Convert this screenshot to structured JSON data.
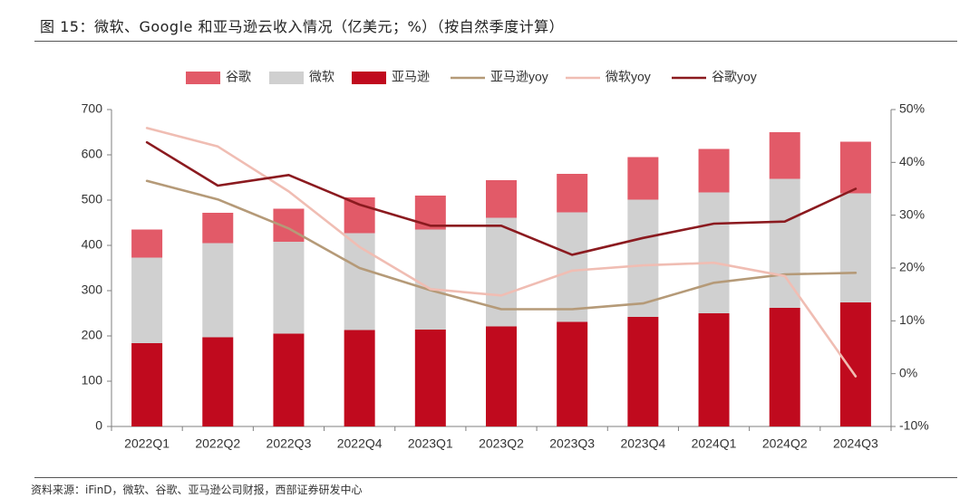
{
  "figure": {
    "title": "图 15：微软、Google 和亚马逊云收入情况（亿美元；%）（按自然季度计算）",
    "source": "资料来源：iFinD，微软、谷歌、亚马逊公司财报，西部证券研发中心"
  },
  "chart_data": {
    "type": "bar",
    "stacked": true,
    "categories": [
      "2022Q1",
      "2022Q2",
      "2022Q3",
      "2022Q4",
      "2023Q1",
      "2023Q2",
      "2023Q3",
      "2023Q4",
      "2024Q1",
      "2024Q2",
      "2024Q3"
    ],
    "series": [
      {
        "name": "亚马逊",
        "kind": "bar",
        "color": "#C00A1E",
        "values": [
          184,
          197,
          205,
          213,
          214,
          221,
          231,
          242,
          250,
          262,
          274
        ]
      },
      {
        "name": "微软",
        "kind": "bar",
        "color": "#D0D0D0",
        "values": [
          189,
          208,
          203,
          214,
          221,
          240,
          242,
          259,
          267,
          285,
          241
        ]
      },
      {
        "name": "谷歌",
        "kind": "bar",
        "color": "#E25A68",
        "values": [
          62,
          67,
          73,
          79,
          75,
          83,
          85,
          94,
          96,
          103,
          114
        ]
      },
      {
        "name": "亚马逊yoy",
        "kind": "line",
        "axis": "right",
        "color": "#B59A78",
        "values": [
          36.5,
          33.0,
          27.5,
          20.0,
          15.8,
          12.2,
          12.2,
          13.3,
          17.2,
          18.8,
          19.1
        ]
      },
      {
        "name": "微软yoy",
        "kind": "line",
        "axis": "right",
        "color": "#F0BDB3",
        "values": [
          46.5,
          43.0,
          34.5,
          24.0,
          16.0,
          14.8,
          19.5,
          20.5,
          21.0,
          18.5,
          -0.5
        ]
      },
      {
        "name": "谷歌yoy",
        "kind": "line",
        "axis": "right",
        "color": "#8B1A1F",
        "values": [
          43.8,
          35.6,
          37.6,
          32.0,
          28.0,
          28.0,
          22.5,
          25.7,
          28.4,
          28.8,
          35.0
        ]
      }
    ],
    "legend_order": [
      "谷歌",
      "微软",
      "亚马逊",
      "亚马逊yoy",
      "微软yoy",
      "谷歌yoy"
    ],
    "y_left": {
      "min": 0,
      "max": 700,
      "ticks": [
        "0",
        "100",
        "200",
        "300",
        "400",
        "500",
        "600",
        "700"
      ]
    },
    "y_right": {
      "min": -10,
      "max": 50,
      "ticks": [
        "-10%",
        "0%",
        "10%",
        "20%",
        "30%",
        "40%",
        "50%"
      ]
    },
    "legend_position": "top-center",
    "grid": false
  }
}
